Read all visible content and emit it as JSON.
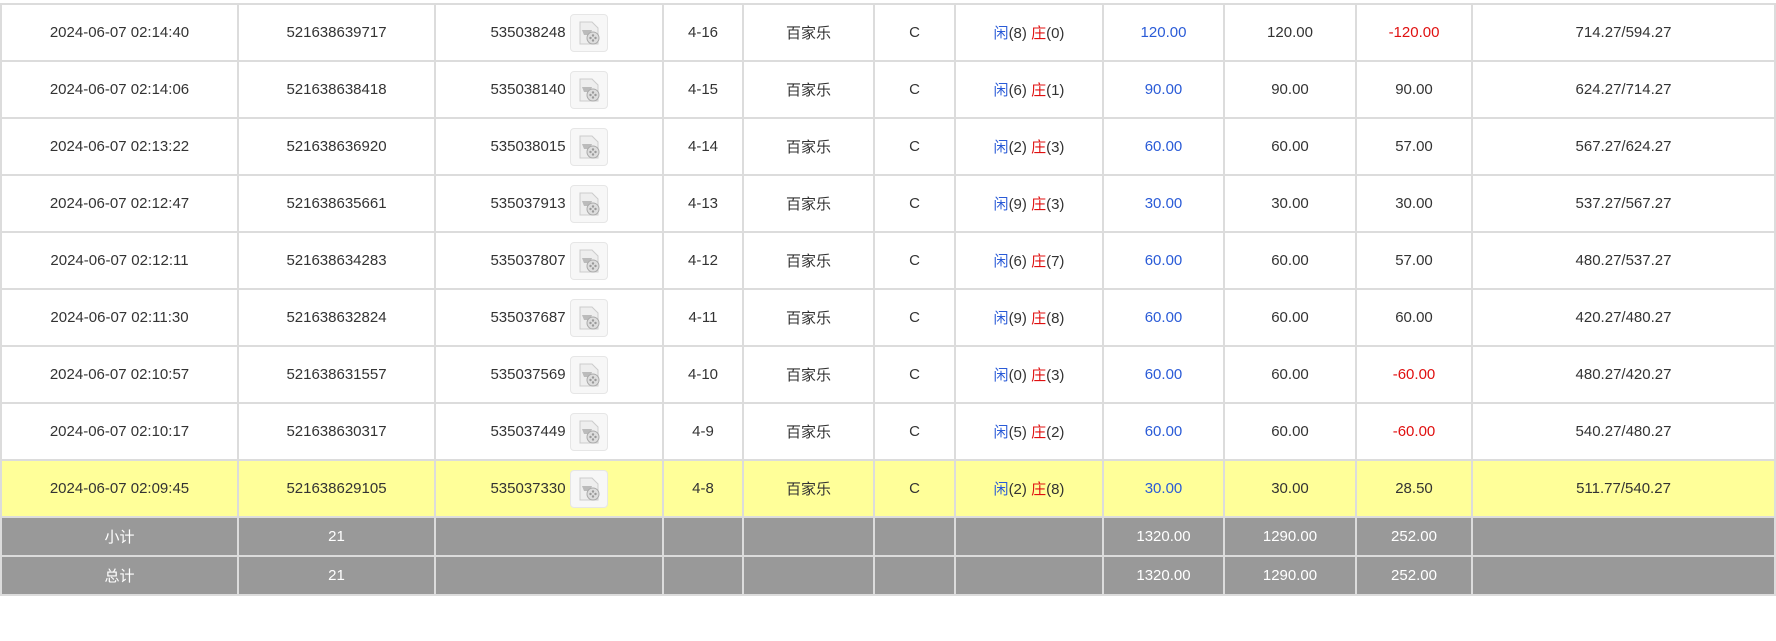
{
  "colors": {
    "blue": "#2a5bd7",
    "red": "#e01010",
    "highlight": "#ffff99",
    "summary": "#999999"
  },
  "rows": [
    {
      "time": "2024-06-07 02:14:40",
      "bet_id": "521638639717",
      "round_id": "535038248",
      "table": "4-16",
      "game": "百家乐",
      "type": "C",
      "player_label": "闲",
      "player": "(8)",
      "banker_label": "庄",
      "banker": "(0)",
      "bet": "120.00",
      "valid": "120.00",
      "win": "-120.00",
      "win_neg": true,
      "balance": "714.27/594.27"
    },
    {
      "time": "2024-06-07 02:14:06",
      "bet_id": "521638638418",
      "round_id": "535038140",
      "table": "4-15",
      "game": "百家乐",
      "type": "C",
      "player_label": "闲",
      "player": "(6)",
      "banker_label": "庄",
      "banker": "(1)",
      "bet": "90.00",
      "valid": "90.00",
      "win": "90.00",
      "win_neg": false,
      "balance": "624.27/714.27"
    },
    {
      "time": "2024-06-07 02:13:22",
      "bet_id": "521638636920",
      "round_id": "535038015",
      "table": "4-14",
      "game": "百家乐",
      "type": "C",
      "player_label": "闲",
      "player": "(2)",
      "banker_label": "庄",
      "banker": "(3)",
      "bet": "60.00",
      "valid": "60.00",
      "win": "57.00",
      "win_neg": false,
      "balance": "567.27/624.27"
    },
    {
      "time": "2024-06-07 02:12:47",
      "bet_id": "521638635661",
      "round_id": "535037913",
      "table": "4-13",
      "game": "百家乐",
      "type": "C",
      "player_label": "闲",
      "player": "(9)",
      "banker_label": "庄",
      "banker": "(3)",
      "bet": "30.00",
      "valid": "30.00",
      "win": "30.00",
      "win_neg": false,
      "balance": "537.27/567.27"
    },
    {
      "time": "2024-06-07 02:12:11",
      "bet_id": "521638634283",
      "round_id": "535037807",
      "table": "4-12",
      "game": "百家乐",
      "type": "C",
      "player_label": "闲",
      "player": "(6)",
      "banker_label": "庄",
      "banker": "(7)",
      "bet": "60.00",
      "valid": "60.00",
      "win": "57.00",
      "win_neg": false,
      "balance": "480.27/537.27"
    },
    {
      "time": "2024-06-07 02:11:30",
      "bet_id": "521638632824",
      "round_id": "535037687",
      "table": "4-11",
      "game": "百家乐",
      "type": "C",
      "player_label": "闲",
      "player": "(9)",
      "banker_label": "庄",
      "banker": "(8)",
      "bet": "60.00",
      "valid": "60.00",
      "win": "60.00",
      "win_neg": false,
      "balance": "420.27/480.27"
    },
    {
      "time": "2024-06-07 02:10:57",
      "bet_id": "521638631557",
      "round_id": "535037569",
      "table": "4-10",
      "game": "百家乐",
      "type": "C",
      "player_label": "闲",
      "player": "(0)",
      "banker_label": "庄",
      "banker": "(3)",
      "bet": "60.00",
      "valid": "60.00",
      "win": "-60.00",
      "win_neg": true,
      "balance": "480.27/420.27"
    },
    {
      "time": "2024-06-07 02:10:17",
      "bet_id": "521638630317",
      "round_id": "535037449",
      "table": "4-9",
      "game": "百家乐",
      "type": "C",
      "player_label": "闲",
      "player": "(5)",
      "banker_label": "庄",
      "banker": "(2)",
      "bet": "60.00",
      "valid": "60.00",
      "win": "-60.00",
      "win_neg": true,
      "balance": "540.27/480.27"
    },
    {
      "time": "2024-06-07 02:09:45",
      "bet_id": "521638629105",
      "round_id": "535037330",
      "table": "4-8",
      "game": "百家乐",
      "type": "C",
      "player_label": "闲",
      "player": "(2)",
      "banker_label": "庄",
      "banker": "(8)",
      "bet": "30.00",
      "valid": "30.00",
      "win": "28.50",
      "win_neg": false,
      "balance": "511.77/540.27",
      "highlight": true
    }
  ],
  "summary": [
    {
      "label": "小计",
      "count": "21",
      "bet": "1320.00",
      "valid": "1290.00",
      "win": "252.00"
    },
    {
      "label": "总计",
      "count": "21",
      "bet": "1320.00",
      "valid": "1290.00",
      "win": "252.00"
    }
  ]
}
